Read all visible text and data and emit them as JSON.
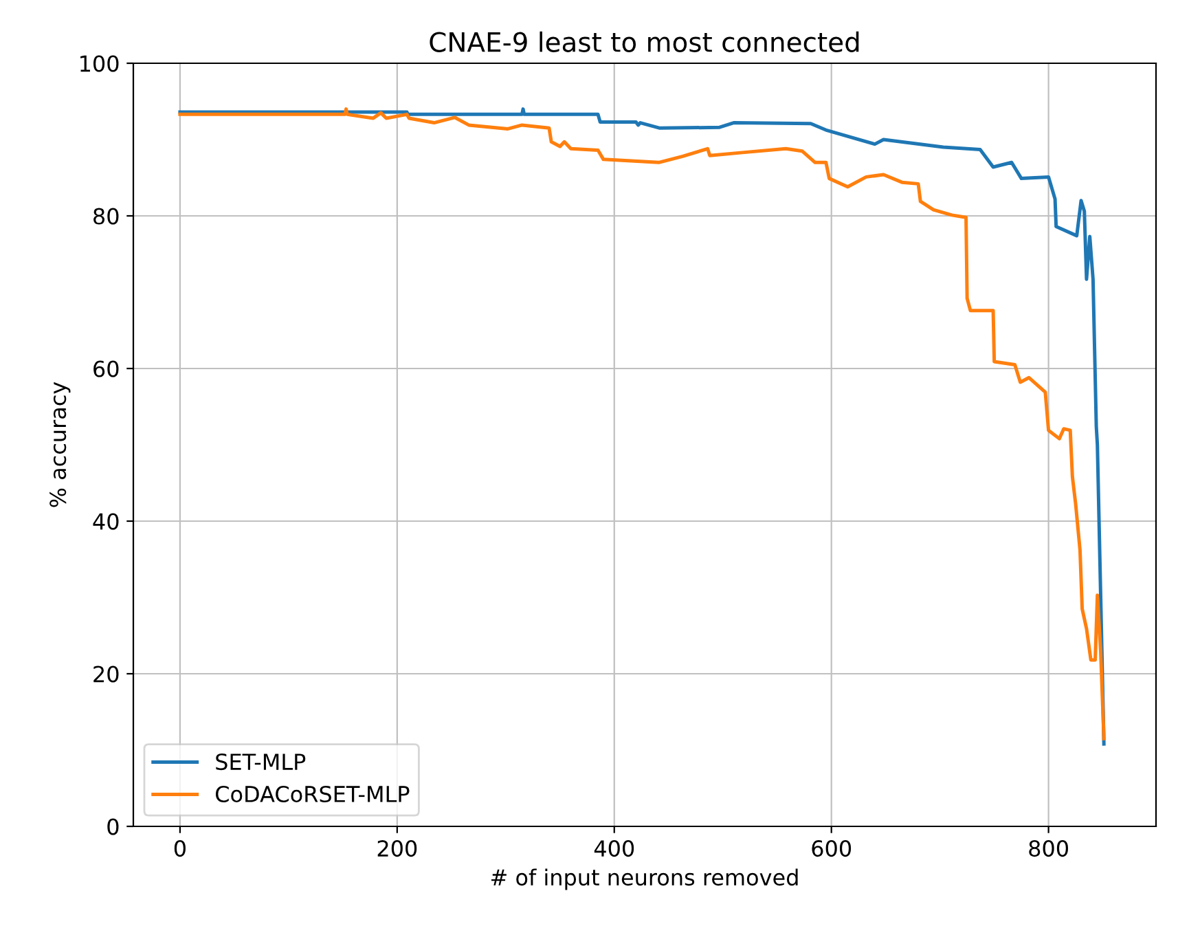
{
  "chart_data": {
    "type": "line",
    "title": "CNAE-9 least to most connected",
    "xlabel": "# of input neurons removed",
    "ylabel": "% accuracy",
    "xlim": [
      -43,
      899
    ],
    "xticks": [
      0,
      200,
      400,
      600,
      800
    ],
    "ylim": [
      0,
      100
    ],
    "yticks": [
      0,
      20,
      40,
      60,
      80,
      100
    ],
    "grid": true,
    "legend": "bottom left",
    "line_style": "solid",
    "marker": "none",
    "series": [
      {
        "name": "SET-MLP",
        "color": "#1f77b4",
        "x": [
          0,
          209,
          210,
          315,
          316,
          317,
          385,
          387,
          420,
          422,
          424,
          442,
          497,
          510,
          581,
          596,
          640,
          648,
          703,
          737,
          749,
          766,
          775,
          800,
          806,
          807,
          826,
          830,
          833,
          835,
          838,
          841,
          844,
          845,
          851
        ],
        "values": [
          93.6,
          93.6,
          93.3,
          93.3,
          94,
          93.3,
          93.3,
          92.3,
          92.3,
          91.9,
          92.2,
          91.5,
          91.6,
          92.2,
          92.1,
          91.2,
          89.4,
          90,
          89,
          88.7,
          86.4,
          87,
          84.9,
          85.1,
          82.2,
          78.6,
          77.4,
          82,
          80.6,
          71.7,
          77.3,
          71.7,
          52.4,
          50,
          10.8
        ]
      },
      {
        "name": "CoDACoRSET-MLP",
        "color": "#ff7f0e",
        "x": [
          0,
          152,
          153,
          154,
          178,
          185,
          190,
          209,
          211,
          234,
          253,
          266,
          302,
          315,
          340,
          342,
          350,
          354,
          360,
          385,
          390,
          441,
          463,
          486,
          488,
          518,
          558,
          573,
          585,
          595,
          598,
          615,
          632,
          648,
          665,
          680,
          682,
          694,
          711,
          724,
          725,
          728,
          749,
          750,
          769,
          774,
          782,
          797,
          800,
          810,
          814,
          820,
          822,
          825,
          829,
          831,
          835,
          839,
          843,
          845,
          848,
          851
        ],
        "values": [
          93.3,
          93.3,
          94,
          93.3,
          92.8,
          93.5,
          92.8,
          93.3,
          92.8,
          92.2,
          92.9,
          91.9,
          91.4,
          91.9,
          91.5,
          89.7,
          89.1,
          89.7,
          88.8,
          88.6,
          87.4,
          87,
          87.8,
          88.8,
          87.9,
          88.3,
          88.8,
          88.5,
          87,
          87,
          84.9,
          83.8,
          85.1,
          85.4,
          84.4,
          84.2,
          81.9,
          80.8,
          80.1,
          79.8,
          69.2,
          67.6,
          67.6,
          60.9,
          60.5,
          58.2,
          58.8,
          56.9,
          51.9,
          50.8,
          52.1,
          51.9,
          45.8,
          42.2,
          36.2,
          28.5,
          25.9,
          21.8,
          21.8,
          30.3,
          23,
          11.5
        ]
      }
    ]
  }
}
